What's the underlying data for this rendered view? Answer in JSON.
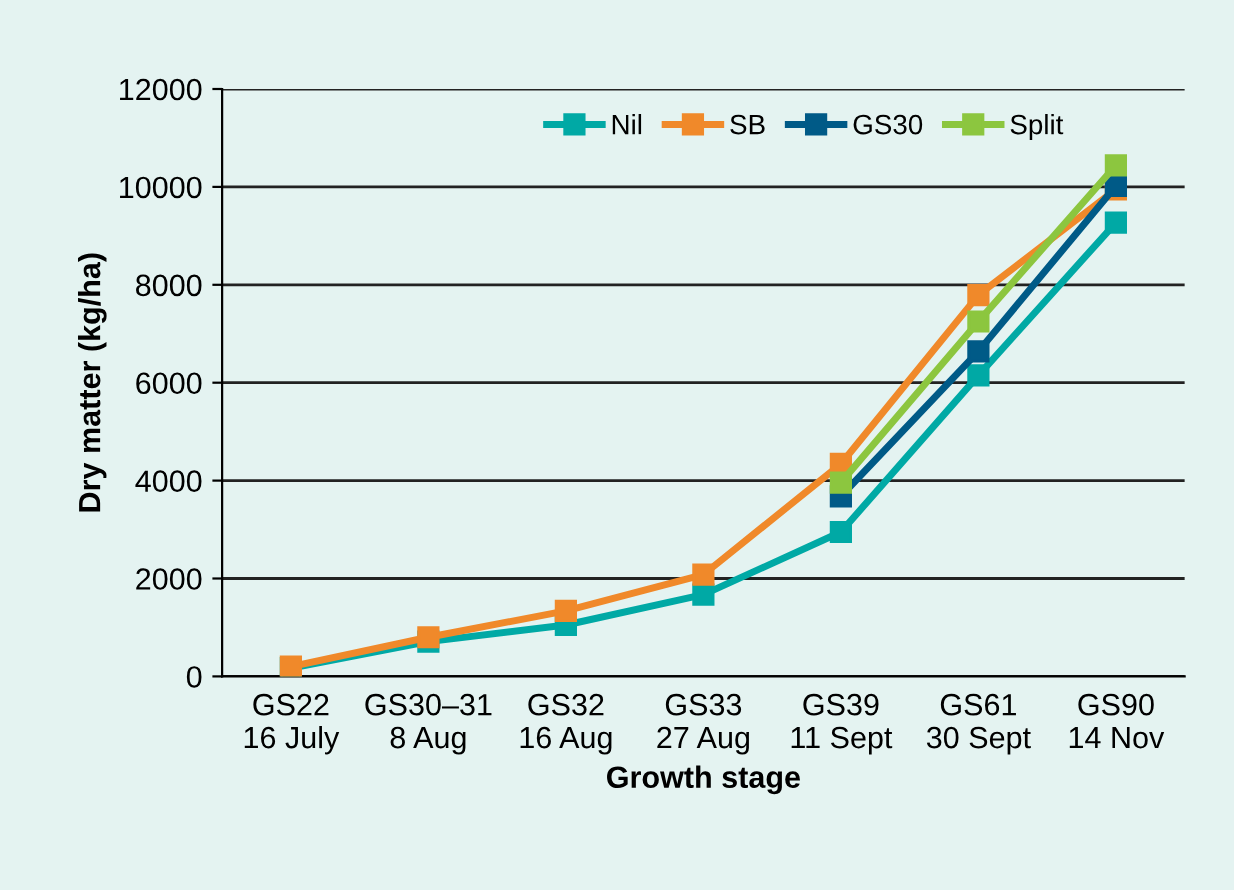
{
  "chart_data": {
    "type": "line",
    "xlabel": "Growth stage",
    "ylabel": "Dry matter (kg/ha)",
    "categories": [
      "GS22\n16 July",
      "GS30–31\n8 Aug",
      "GS32\n16 Aug",
      "GS33\n27 Aug",
      "GS39\n11 Sept",
      "GS61\n30 Sept",
      "GS90\n14 Nov"
    ],
    "series": [
      {
        "name": "Nil",
        "color": "#00a9a5",
        "values": [
          170,
          710,
          1050,
          1670,
          2950,
          6150,
          9270
        ]
      },
      {
        "name": "SB",
        "color": "#f0892a",
        "values": [
          200,
          800,
          1340,
          2080,
          4340,
          7790,
          9950
        ]
      },
      {
        "name": "GS30",
        "color": "#005a87",
        "values": [
          null,
          null,
          null,
          null,
          3680,
          6640,
          10020
        ]
      },
      {
        "name": "Split",
        "color": "#8cc63f",
        "values": [
          null,
          null,
          null,
          null,
          3960,
          7250,
          10440
        ]
      }
    ],
    "ylim": [
      0,
      12000
    ],
    "yticks": [
      0,
      2000,
      4000,
      6000,
      8000,
      10000,
      12000
    ],
    "grid": "y",
    "legend": "top right",
    "marker": "square",
    "line_style": "solid"
  }
}
